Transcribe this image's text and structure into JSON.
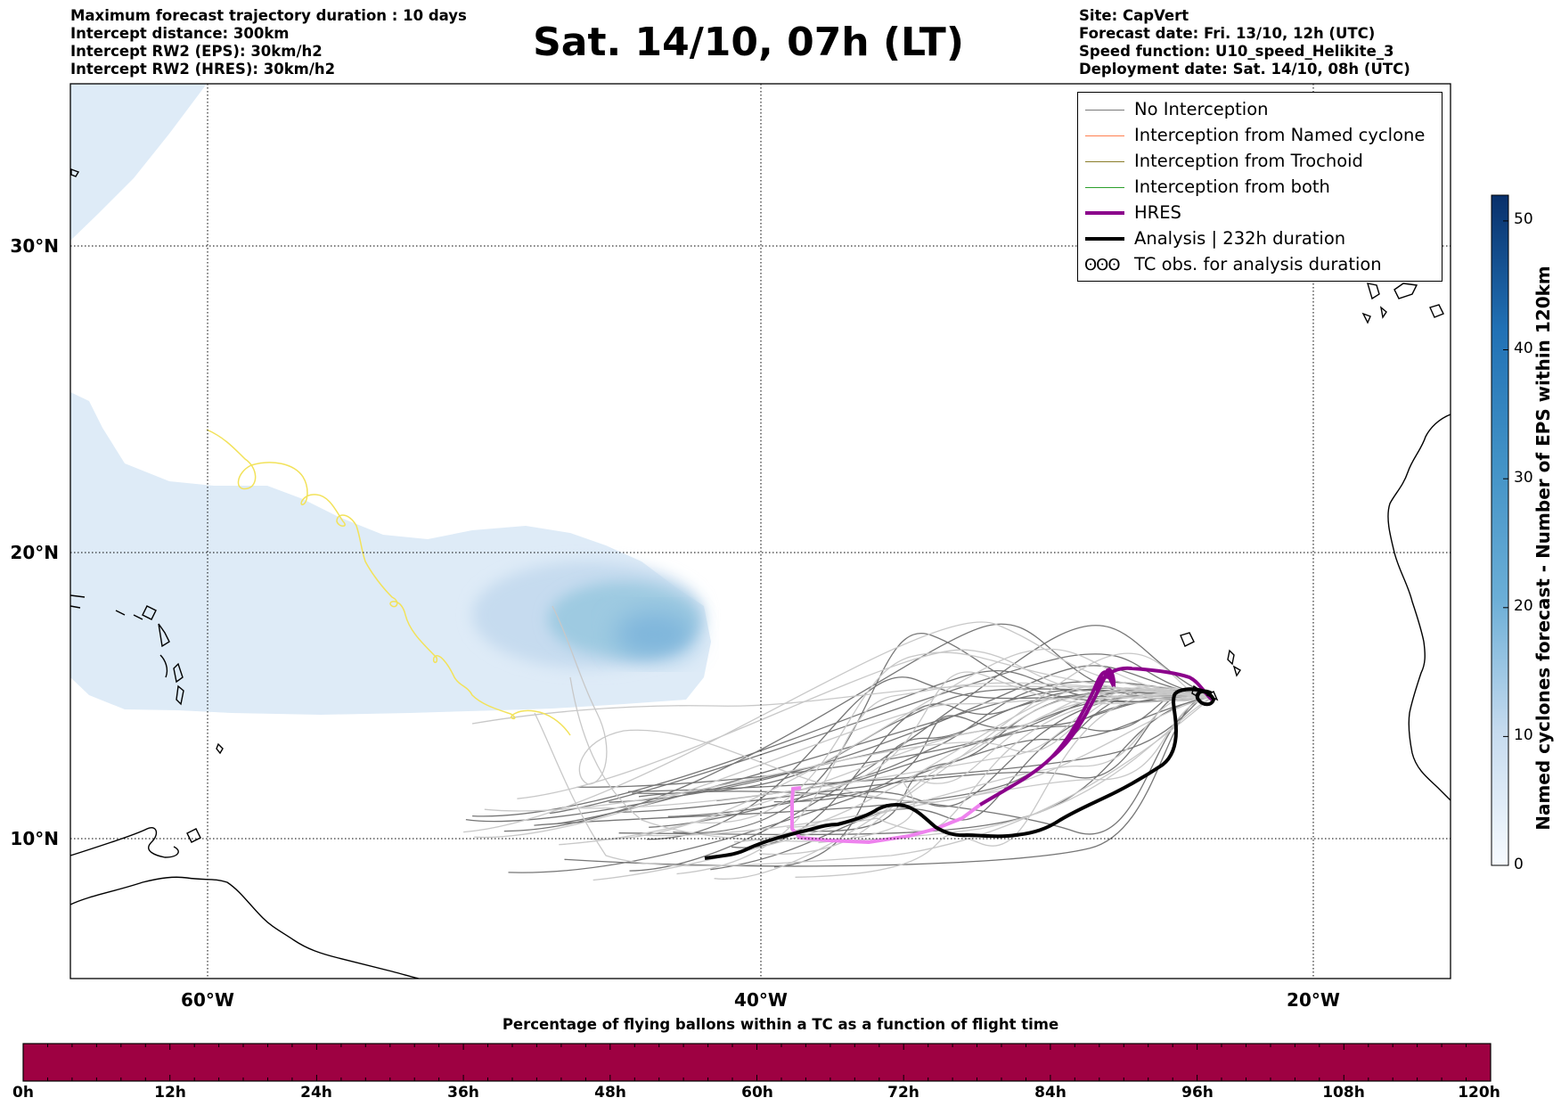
{
  "header": {
    "left_lines": [
      "Maximum forecast trajectory duration : 10 days",
      "Intercept distance: 300km",
      "Intercept RW2 (EPS):  30km/h2",
      "Intercept RW2 (HRES): 30km/h2"
    ],
    "title": "Sat. 14/10, 07h (LT)",
    "right_lines": [
      "Site: CapVert",
      "Forecast date: Fri. 13/10, 12h (UTC)",
      "Speed function: U10_speed_Helikite_3",
      "Deployment date: Sat. 14/10, 08h (UTC)"
    ]
  },
  "map": {
    "lon_range": [
      -65,
      -15
    ],
    "lat_range": [
      5.5,
      35
    ],
    "lon_ticks": [
      {
        "value": -60,
        "label": "60°W"
      },
      {
        "value": -40,
        "label": "40°W"
      },
      {
        "value": -20,
        "label": "20°W"
      }
    ],
    "lat_ticks": [
      {
        "value": 30,
        "label": "30°N"
      },
      {
        "value": 20,
        "label": "20°N"
      },
      {
        "value": 10,
        "label": "10°N"
      }
    ]
  },
  "legend": [
    {
      "label": "No Interception",
      "color": "#7a7a7a",
      "width": 1.2
    },
    {
      "label": "Interception from Named cyclone",
      "color": "#ff7f50",
      "width": 1.2
    },
    {
      "label": "Interception from Trochoid",
      "color": "#8b7d2b",
      "width": 1.2
    },
    {
      "label": "Interception from both",
      "color": "#2ca02c",
      "width": 1.2
    },
    {
      "label": "HRES",
      "color": "#8b008b",
      "width": 4
    },
    {
      "label": "Analysis | 232h duration",
      "color": "#000000",
      "width": 4
    },
    {
      "label": "TC obs. for analysis duration",
      "glyph": "ʘʘʘ"
    }
  ],
  "colorbar": {
    "title": "Named cyclones forecast - Number of EPS within 120km",
    "ticks": [
      "0",
      "10",
      "20",
      "30",
      "40",
      "50"
    ],
    "max": 52
  },
  "histogram": {
    "title": "Percentage of flying ballons within a TC as a function of flight time",
    "ticks": [
      "0h",
      "12h",
      "24h",
      "36h",
      "48h",
      "60h",
      "72h",
      "84h",
      "96h",
      "108h",
      "120h"
    ],
    "fill_color": "#9e0142"
  }
}
